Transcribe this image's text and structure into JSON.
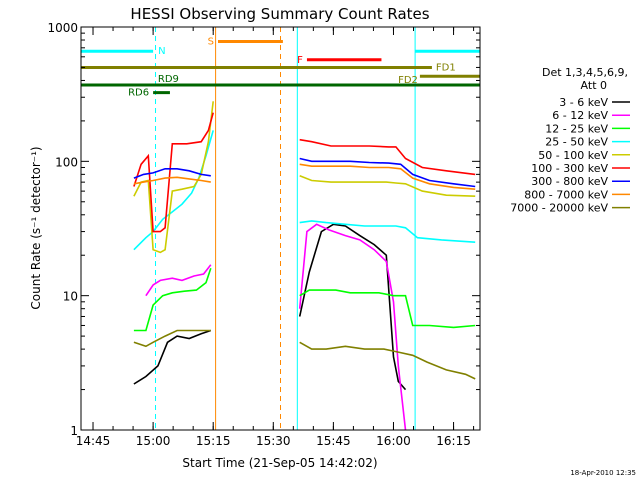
{
  "chart_data": {
    "type": "line",
    "title": "HESSI Observing Summary Count Rates",
    "xlabel": "Start Time (21-Sep-05 14:42:02)",
    "ylabel": "Count Rate (s⁻¹ detector⁻¹)",
    "ylog": true,
    "xlim": [
      14.7,
      16.36
    ],
    "ylim": [
      1,
      1000
    ],
    "xticks": [
      "14:45",
      "15:00",
      "15:15",
      "15:30",
      "15:45",
      "16:00",
      "16:15"
    ],
    "xtick_values": [
      14.75,
      15.0,
      15.25,
      15.5,
      15.75,
      16.0,
      16.25
    ],
    "yticks": [
      "1",
      "10",
      "100",
      "1000"
    ],
    "ytick_values": [
      1,
      10,
      100,
      1000
    ],
    "timestamp": "18-Apr-2010 12:35",
    "legend": {
      "header1": "Det 1,3,4,5,6,9,",
      "header2": "Att 0",
      "entries": [
        {
          "name": "3 - 6 keV",
          "color": "#000000"
        },
        {
          "name": "6 - 12 keV",
          "color": "#ff00ff"
        },
        {
          "name": "12 - 25 keV",
          "color": "#00ff00"
        },
        {
          "name": "25 - 50 keV",
          "color": "#00ffff"
        },
        {
          "name": "50 - 100 keV",
          "color": "#cccc00"
        },
        {
          "name": "100 - 300 keV",
          "color": "#ff0000"
        },
        {
          "name": "300 - 800 keV",
          "color": "#0000ff"
        },
        {
          "name": "800 - 7000 keV",
          "color": "#ff8800"
        },
        {
          "name": "7000 - 20000 keV",
          "color": "#808000"
        }
      ]
    },
    "flags": [
      {
        "label": "N",
        "color": "#00ffff",
        "y": 660,
        "segments": [
          [
            14.7,
            15.0
          ],
          [
            16.09,
            16.36
          ]
        ]
      },
      {
        "label": "S",
        "color": "#ff8800",
        "y": 780,
        "segments": [
          [
            15.27,
            15.54
          ]
        ]
      },
      {
        "label": "F",
        "color": "#ff0000",
        "y": 570,
        "segments": [
          [
            15.64,
            15.95
          ]
        ]
      },
      {
        "label": "FD1",
        "color": "#808000",
        "y": 500,
        "segments": [
          [
            14.7,
            16.16
          ]
        ]
      },
      {
        "label": "FD2",
        "color": "#808000",
        "y": 430,
        "segments": [
          [
            16.11,
            16.36
          ]
        ]
      },
      {
        "label": "RD9",
        "color": "#006600",
        "y": 370,
        "segments": [
          [
            14.7,
            16.36
          ]
        ]
      },
      {
        "label": "RD6",
        "color": "#006600",
        "y": 325,
        "segments": [
          [
            15.0,
            15.07
          ]
        ]
      }
    ],
    "vlines": [
      {
        "x": 15.01,
        "color": "#00ffff",
        "dashed": true
      },
      {
        "x": 15.26,
        "color": "#ff8800",
        "dashed": false
      },
      {
        "x": 15.53,
        "color": "#ff8800",
        "dashed": true
      },
      {
        "x": 15.6,
        "color": "#00ffff",
        "dashed": false
      },
      {
        "x": 16.09,
        "color": "#00ffff",
        "dashed": false
      },
      {
        "x": 16.36,
        "color": "#00ffff",
        "dashed": true
      }
    ],
    "series": [
      {
        "name": "3 - 6 keV",
        "color": "#000000",
        "segments": [
          {
            "x": [
              14.92,
              14.97,
              15.02,
              15.06,
              15.1,
              15.15,
              15.2,
              15.24
            ],
            "y": [
              2.2,
              2.5,
              3.0,
              4.5,
              5.0,
              4.8,
              5.2,
              5.5
            ]
          },
          {
            "x": [
              15.61,
              15.65,
              15.7,
              15.75,
              15.8,
              15.86,
              15.92,
              15.97,
              16.0,
              16.02,
              16.05
            ],
            "y": [
              7,
              15,
              30,
              34,
              33,
              28,
              24,
              20,
              3.5,
              2.3,
              2.0
            ]
          }
        ]
      },
      {
        "name": "6 - 12 keV",
        "color": "#ff00ff",
        "segments": [
          {
            "x": [
              14.97,
              15.0,
              15.03,
              15.08,
              15.12,
              15.17,
              15.21,
              15.24
            ],
            "y": [
              10,
              12,
              13,
              13.5,
              13,
              14,
              14.5,
              17
            ]
          },
          {
            "x": [
              15.61,
              15.64,
              15.68,
              15.73,
              15.8,
              15.86,
              15.92,
              15.97,
              16.0,
              16.02,
              16.05
            ],
            "y": [
              8,
              30,
              34,
              31,
              28,
              26,
              22,
              18,
              9,
              3,
              1
            ]
          }
        ]
      },
      {
        "name": "12 - 25 keV",
        "color": "#00ff00",
        "segments": [
          {
            "x": [
              14.92,
              14.97,
              15.0,
              15.04,
              15.08,
              15.13,
              15.18,
              15.22,
              15.24
            ],
            "y": [
              5.5,
              5.5,
              8.5,
              10,
              10.5,
              10.8,
              11,
              12.5,
              16
            ]
          },
          {
            "x": [
              15.61,
              15.65,
              15.7,
              15.76,
              15.82,
              15.88,
              15.94,
              16.0,
              16.05,
              16.08,
              16.15,
              16.25,
              16.34
            ],
            "y": [
              10,
              11,
              11,
              11,
              10.5,
              10.5,
              10.5,
              10,
              10,
              6,
              6,
              5.8,
              6
            ]
          }
        ]
      },
      {
        "name": "25 - 50 keV",
        "color": "#00ffff",
        "segments": [
          {
            "x": [
              14.92,
              14.97,
              15.0,
              15.04,
              15.08,
              15.12,
              15.16,
              15.19,
              15.22,
              15.25
            ],
            "y": [
              22,
              27,
              30,
              37,
              42,
              48,
              58,
              75,
              110,
              170
            ]
          },
          {
            "x": [
              15.61,
              15.66,
              15.72,
              15.8,
              15.88,
              15.95,
              16.01,
              16.05,
              16.1,
              16.2,
              16.34
            ],
            "y": [
              35,
              36,
              35,
              34,
              33,
              33,
              33,
              32,
              27,
              26,
              25
            ]
          }
        ]
      },
      {
        "name": "50 - 100 keV",
        "color": "#cccc00",
        "segments": [
          {
            "x": [
              14.92,
              14.95,
              14.98,
              15.0,
              15.03,
              15.05,
              15.08,
              15.12,
              15.17,
              15.2,
              15.23,
              15.25
            ],
            "y": [
              55,
              70,
              72,
              22,
              21,
              22,
              60,
              62,
              65,
              80,
              140,
              280
            ]
          },
          {
            "x": [
              15.61,
              15.66,
              15.74,
              15.82,
              15.9,
              15.97,
              16.01,
              16.05,
              16.12,
              16.22,
              16.34
            ],
            "y": [
              78,
              72,
              70,
              70,
              70,
              70,
              69,
              68,
              60,
              56,
              55
            ]
          }
        ]
      },
      {
        "name": "100 - 300 keV",
        "color": "#ff0000",
        "segments": [
          {
            "x": [
              14.92,
              14.95,
              14.98,
              15.0,
              15.03,
              15.05,
              15.08,
              15.14,
              15.2,
              15.23,
              15.25
            ],
            "y": [
              65,
              95,
              110,
              30,
              30,
              32,
              135,
              135,
              140,
              170,
              230
            ]
          },
          {
            "x": [
              15.61,
              15.66,
              15.74,
              15.82,
              15.9,
              15.98,
              16.01,
              16.05,
              16.12,
              16.22,
              16.34
            ],
            "y": [
              145,
              140,
              130,
              130,
              130,
              128,
              128,
              105,
              90,
              85,
              80
            ]
          }
        ]
      },
      {
        "name": "300 - 800 keV",
        "color": "#0000ff",
        "segments": [
          {
            "x": [
              14.92,
              14.96,
              15.0,
              15.05,
              15.1,
              15.15,
              15.2,
              15.24
            ],
            "y": [
              75,
              80,
              82,
              88,
              88,
              85,
              80,
              78
            ]
          },
          {
            "x": [
              15.61,
              15.66,
              15.74,
              15.82,
              15.9,
              15.98,
              16.03,
              16.08,
              16.15,
              16.25,
              16.34
            ],
            "y": [
              105,
              100,
              100,
              100,
              98,
              97,
              95,
              80,
              72,
              68,
              65
            ]
          }
        ]
      },
      {
        "name": "800 - 7000 keV",
        "color": "#ff8800",
        "segments": [
          {
            "x": [
              14.92,
              14.96,
              15.0,
              15.05,
              15.1,
              15.15,
              15.2,
              15.24
            ],
            "y": [
              68,
              70,
              72,
              75,
              76,
              74,
              72,
              70
            ]
          },
          {
            "x": [
              15.61,
              15.66,
              15.74,
              15.82,
              15.9,
              15.98,
              16.03,
              16.08,
              16.15,
              16.25,
              16.34
            ],
            "y": [
              95,
              92,
              92,
              92,
              90,
              90,
              88,
              75,
              68,
              64,
              62
            ]
          }
        ]
      },
      {
        "name": "7000 - 20000 keV",
        "color": "#808000",
        "segments": [
          {
            "x": [
              14.92,
              14.97,
              15.0,
              15.05,
              15.1,
              15.15,
              15.2,
              15.24
            ],
            "y": [
              4.5,
              4.2,
              4.5,
              5.0,
              5.5,
              5.5,
              5.5,
              5.5
            ]
          },
          {
            "x": [
              15.61,
              15.66,
              15.72,
              15.8,
              15.88,
              15.96,
              16.02,
              16.08,
              16.14,
              16.22,
              16.3,
              16.34
            ],
            "y": [
              4.5,
              4.0,
              4.0,
              4.2,
              4.0,
              4.0,
              3.8,
              3.6,
              3.2,
              2.8,
              2.6,
              2.4
            ]
          }
        ]
      }
    ]
  }
}
